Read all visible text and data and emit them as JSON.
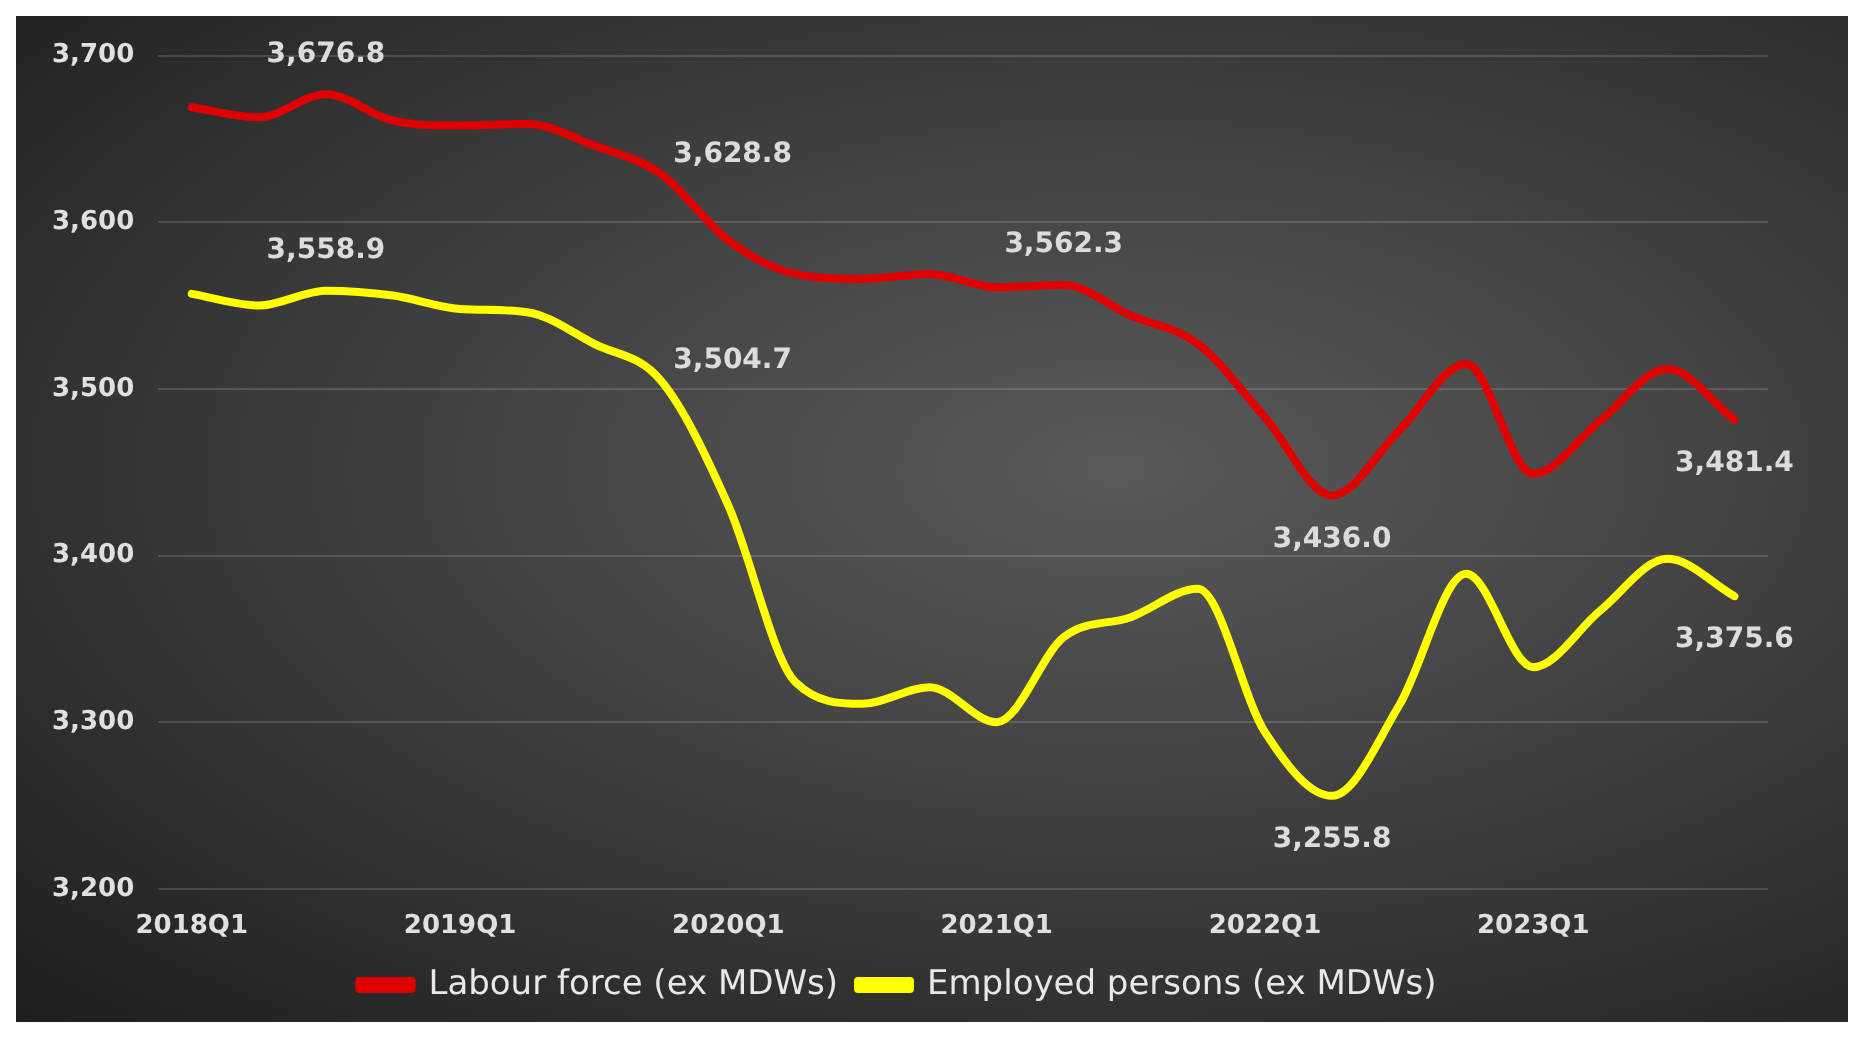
{
  "chart_data": {
    "type": "line",
    "categories": [
      "2018Q1",
      null,
      null,
      null,
      "2019Q1",
      null,
      null,
      null,
      "2020Q1",
      null,
      null,
      null,
      "2021Q1",
      null,
      null,
      null,
      "2022Q1",
      null,
      null,
      null,
      "2023Q1",
      null,
      null,
      null
    ],
    "series": [
      {
        "name": "Labour force (ex MDWs)",
        "color": "#e00000",
        "values": [
          3669,
          3663,
          3676.8,
          3661,
          3658,
          3659,
          3646,
          3628.8,
          3589,
          3569,
          3566,
          3569,
          3561,
          3562.3,
          3544,
          3527,
          3483,
          3436.0,
          3475,
          3515,
          3449,
          3481,
          3512,
          3481.4
        ],
        "value_labels": [
          null,
          null,
          "3,676.8",
          null,
          null,
          null,
          null,
          "3,628.8",
          null,
          null,
          null,
          null,
          null,
          "3,562.3",
          null,
          null,
          null,
          "3,436.0",
          null,
          null,
          null,
          null,
          null,
          "3,481.4"
        ]
      },
      {
        "name": "Employed persons (ex MDWs)",
        "color": "#ffff00",
        "values": [
          3557,
          3550,
          3558.9,
          3556,
          3548,
          3546,
          3527,
          3504.7,
          3430,
          3324,
          3311,
          3321,
          3300,
          3351,
          3363,
          3380,
          3294,
          3255.8,
          3310,
          3389,
          3333,
          3367,
          3398,
          3375.6
        ],
        "value_labels": [
          null,
          null,
          "3,558.9",
          null,
          null,
          null,
          null,
          "3,504.7",
          null,
          null,
          null,
          null,
          null,
          null,
          null,
          null,
          null,
          "3,255.8",
          null,
          null,
          null,
          null,
          null,
          "3,375.6"
        ]
      }
    ],
    "ylim": [
      3200,
      3700
    ],
    "yticks": [
      {
        "value": 3200,
        "label": "3,200"
      },
      {
        "value": 3300,
        "label": "3,300"
      },
      {
        "value": 3400,
        "label": "3,400"
      },
      {
        "value": 3500,
        "label": "3,500"
      },
      {
        "value": 3600,
        "label": "3,600"
      },
      {
        "value": 3700,
        "label": "3,700"
      }
    ],
    "grid": "y",
    "legend": "bottom",
    "marker": "none",
    "line_style": "solid"
  }
}
